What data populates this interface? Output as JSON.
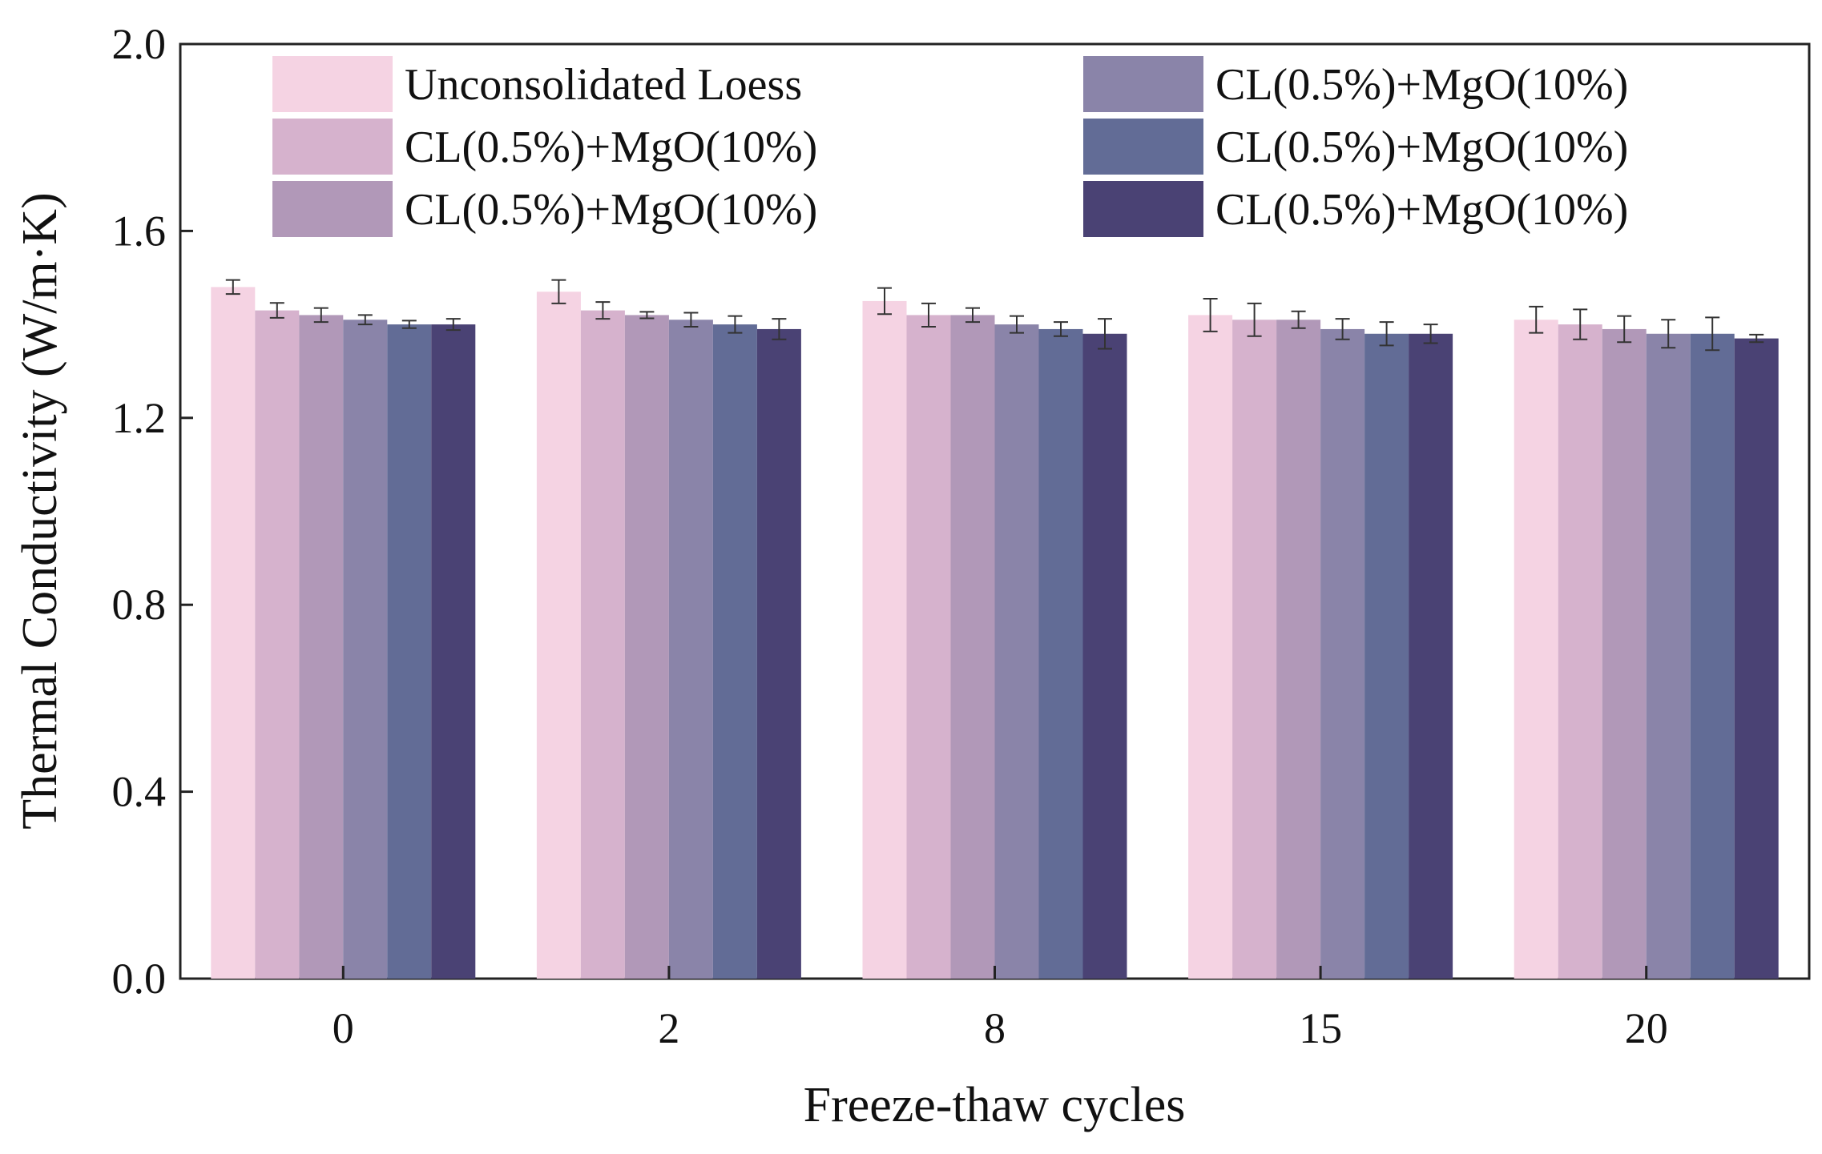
{
  "chart_data": {
    "type": "bar",
    "xlabel": "Freeze-thaw cycles",
    "ylabel": "Thermal Conductivity (W/m·K)",
    "ylim": [
      0.0,
      2.0
    ],
    "yticks": [
      "0.0",
      "0.4",
      "0.8",
      "1.2",
      "1.6",
      "2.0"
    ],
    "categories": [
      "0",
      "2",
      "8",
      "15",
      "20"
    ],
    "grid": false,
    "legend_position": "top",
    "series": [
      {
        "name": "Unconsolidated Loess",
        "color": "#f5d3e3",
        "values": [
          1.48,
          1.47,
          1.45,
          1.42,
          1.41
        ],
        "errors": [
          0.015,
          0.025,
          0.028,
          0.035,
          0.028
        ]
      },
      {
        "name": "CL(0.5%)+MgO(10%)",
        "color": "#d6b2cd",
        "values": [
          1.43,
          1.43,
          1.42,
          1.41,
          1.4
        ],
        "errors": [
          0.016,
          0.018,
          0.025,
          0.035,
          0.032
        ]
      },
      {
        "name": "CL(0.5%)+MgO(10%)",
        "color": "#b198b8",
        "values": [
          1.42,
          1.42,
          1.42,
          1.41,
          1.39
        ],
        "errors": [
          0.015,
          0.007,
          0.015,
          0.018,
          0.028
        ]
      },
      {
        "name": "CL(0.5%)+MgO(10%)",
        "color": "#8a84a9",
        "values": [
          1.41,
          1.41,
          1.4,
          1.39,
          1.38
        ],
        "errors": [
          0.01,
          0.015,
          0.018,
          0.022,
          0.03
        ]
      },
      {
        "name": "CL(0.5%)+MgO(10%)",
        "color": "#626c96",
        "values": [
          1.4,
          1.4,
          1.39,
          1.38,
          1.38
        ],
        "errors": [
          0.008,
          0.018,
          0.015,
          0.025,
          0.035
        ]
      },
      {
        "name": "CL(0.5%)+MgO(10%)",
        "color": "#4a4274",
        "values": [
          1.4,
          1.39,
          1.38,
          1.38,
          1.37
        ],
        "errors": [
          0.012,
          0.022,
          0.032,
          0.02,
          0.008
        ]
      }
    ]
  }
}
